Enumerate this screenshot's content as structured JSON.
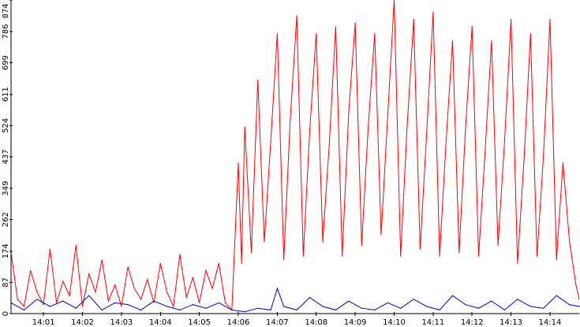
{
  "chart_data": {
    "type": "line",
    "title": "",
    "xlabel": "",
    "ylabel": "",
    "ylim": [
      0,
      874
    ],
    "y_ticks": [
      0,
      87,
      174,
      262,
      349,
      437,
      524,
      611,
      699,
      786,
      874
    ],
    "x_range": [
      "14:00:10",
      "14:14:45"
    ],
    "x_ticks": [
      "14:01",
      "14:02",
      "14:03",
      "14:04",
      "14:05",
      "14:06",
      "14:07",
      "14:08",
      "14:09",
      "14:10",
      "14:11",
      "14:12",
      "14:13",
      "14:14"
    ],
    "grid": false,
    "legend": "none",
    "series": [
      {
        "color": "#ff0000",
        "x": [
          "14:00:10",
          "14:00:20",
          "14:00:30",
          "14:00:40",
          "14:00:50",
          "14:01:00",
          "14:01:10",
          "14:01:20",
          "14:01:30",
          "14:01:40",
          "14:01:50",
          "14:02:00",
          "14:02:10",
          "14:02:20",
          "14:02:30",
          "14:02:40",
          "14:02:50",
          "14:03:00",
          "14:03:10",
          "14:03:20",
          "14:03:30",
          "14:03:40",
          "14:03:50",
          "14:04:00",
          "14:04:10",
          "14:04:20",
          "14:04:30",
          "14:04:40",
          "14:04:50",
          "14:05:00",
          "14:05:10",
          "14:05:20",
          "14:05:30",
          "14:05:40",
          "14:05:50",
          "14:06:00",
          "14:06:05",
          "14:06:10",
          "14:06:20",
          "14:06:30",
          "14:06:40",
          "14:06:50",
          "14:07:00",
          "14:07:10",
          "14:07:20",
          "14:07:30",
          "14:07:40",
          "14:07:50",
          "14:08:00",
          "14:08:10",
          "14:08:20",
          "14:08:30",
          "14:08:40",
          "14:08:50",
          "14:09:00",
          "14:09:10",
          "14:09:20",
          "14:09:30",
          "14:09:40",
          "14:09:50",
          "14:10:00",
          "14:10:10",
          "14:10:20",
          "14:10:30",
          "14:10:40",
          "14:10:50",
          "14:11:00",
          "14:11:10",
          "14:11:20",
          "14:11:30",
          "14:11:40",
          "14:11:50",
          "14:12:00",
          "14:12:10",
          "14:12:20",
          "14:12:30",
          "14:12:40",
          "14:12:50",
          "14:13:00",
          "14:13:10",
          "14:13:20",
          "14:13:30",
          "14:13:40",
          "14:13:50",
          "14:14:00",
          "14:14:10",
          "14:14:20",
          "14:14:30",
          "14:14:40",
          "14:14:45"
        ],
        "y": [
          170,
          40,
          20,
          120,
          60,
          25,
          180,
          30,
          90,
          50,
          190,
          20,
          110,
          60,
          150,
          35,
          80,
          20,
          130,
          70,
          40,
          95,
          30,
          140,
          60,
          20,
          165,
          45,
          100,
          30,
          120,
          70,
          140,
          30,
          10,
          420,
          140,
          520,
          170,
          650,
          200,
          480,
          780,
          150,
          540,
          830,
          160,
          510,
          780,
          200,
          470,
          800,
          160,
          560,
          810,
          190,
          520,
          780,
          220,
          550,
          874,
          160,
          520,
          820,
          180,
          500,
          840,
          160,
          480,
          760,
          170,
          520,
          800,
          160,
          450,
          760,
          190,
          480,
          820,
          140,
          430,
          780,
          160,
          440,
          820,
          150,
          420,
          200,
          80,
          40
        ]
      },
      {
        "color": "#0000cc",
        "x": [
          "14:00:10",
          "14:00:30",
          "14:00:50",
          "14:01:10",
          "14:01:30",
          "14:01:50",
          "14:02:10",
          "14:02:30",
          "14:02:50",
          "14:03:10",
          "14:03:30",
          "14:03:50",
          "14:04:10",
          "14:04:30",
          "14:04:50",
          "14:05:10",
          "14:05:30",
          "14:05:50",
          "14:06:10",
          "14:06:30",
          "14:06:50",
          "14:07:00",
          "14:07:10",
          "14:07:30",
          "14:07:50",
          "14:08:10",
          "14:08:30",
          "14:08:50",
          "14:09:10",
          "14:09:30",
          "14:09:50",
          "14:10:10",
          "14:10:30",
          "14:10:50",
          "14:11:10",
          "14:11:30",
          "14:11:50",
          "14:12:10",
          "14:12:30",
          "14:12:50",
          "14:13:10",
          "14:13:30",
          "14:13:50",
          "14:14:10",
          "14:14:30",
          "14:14:45"
        ],
        "y": [
          30,
          10,
          40,
          20,
          35,
          15,
          50,
          10,
          30,
          25,
          10,
          35,
          20,
          10,
          25,
          15,
          30,
          10,
          5,
          15,
          10,
          70,
          20,
          10,
          45,
          20,
          10,
          35,
          15,
          10,
          30,
          15,
          40,
          20,
          10,
          50,
          25,
          15,
          35,
          10,
          40,
          20,
          15,
          50,
          25,
          20
        ]
      }
    ]
  }
}
